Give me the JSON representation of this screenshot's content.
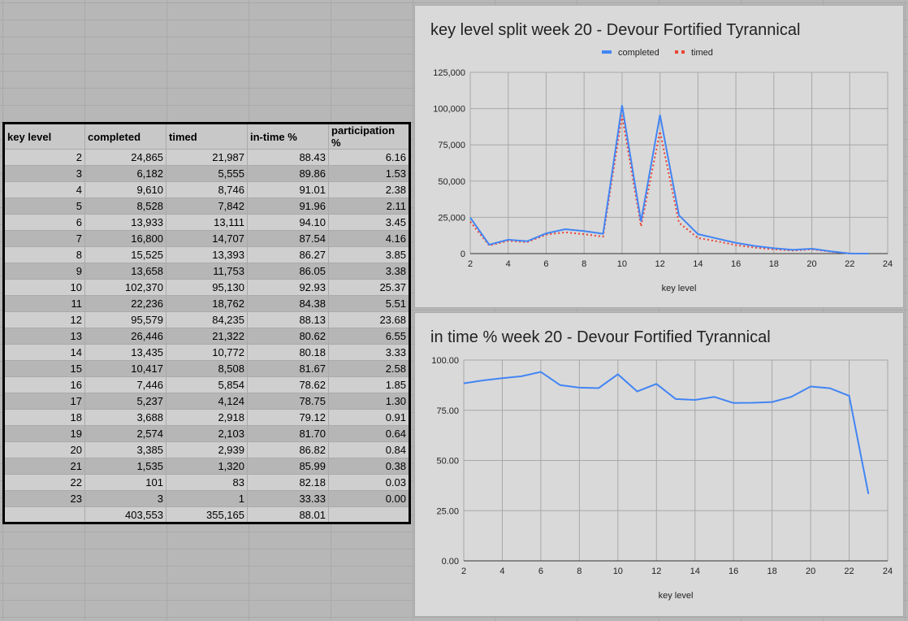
{
  "table": {
    "headers": [
      "key level",
      "completed",
      "timed",
      "in-time %",
      "participation %"
    ],
    "rows": [
      [
        "2",
        "24,865",
        "21,987",
        "88.43",
        "6.16"
      ],
      [
        "3",
        "6,182",
        "5,555",
        "89.86",
        "1.53"
      ],
      [
        "4",
        "9,610",
        "8,746",
        "91.01",
        "2.38"
      ],
      [
        "5",
        "8,528",
        "7,842",
        "91.96",
        "2.11"
      ],
      [
        "6",
        "13,933",
        "13,111",
        "94.10",
        "3.45"
      ],
      [
        "7",
        "16,800",
        "14,707",
        "87.54",
        "4.16"
      ],
      [
        "8",
        "15,525",
        "13,393",
        "86.27",
        "3.85"
      ],
      [
        "9",
        "13,658",
        "11,753",
        "86.05",
        "3.38"
      ],
      [
        "10",
        "102,370",
        "95,130",
        "92.93",
        "25.37"
      ],
      [
        "11",
        "22,236",
        "18,762",
        "84.38",
        "5.51"
      ],
      [
        "12",
        "95,579",
        "84,235",
        "88.13",
        "23.68"
      ],
      [
        "13",
        "26,446",
        "21,322",
        "80.62",
        "6.55"
      ],
      [
        "14",
        "13,435",
        "10,772",
        "80.18",
        "3.33"
      ],
      [
        "15",
        "10,417",
        "8,508",
        "81.67",
        "2.58"
      ],
      [
        "16",
        "7,446",
        "5,854",
        "78.62",
        "1.85"
      ],
      [
        "17",
        "5,237",
        "4,124",
        "78.75",
        "1.30"
      ],
      [
        "18",
        "3,688",
        "2,918",
        "79.12",
        "0.91"
      ],
      [
        "19",
        "2,574",
        "2,103",
        "81.70",
        "0.64"
      ],
      [
        "20",
        "3,385",
        "2,939",
        "86.82",
        "0.84"
      ],
      [
        "21",
        "1,535",
        "1,320",
        "85.99",
        "0.38"
      ],
      [
        "22",
        "101",
        "83",
        "82.18",
        "0.03"
      ],
      [
        "23",
        "3",
        "1",
        "33.33",
        "0.00"
      ],
      [
        "",
        "403,553",
        "355,165",
        "88.01",
        ""
      ]
    ]
  },
  "chart_data": [
    {
      "type": "line",
      "title": "key level split week 20 - Devour Fortified Tyrannical",
      "xlabel": "key level",
      "ylabel": "",
      "xlim": [
        2,
        24
      ],
      "ylim": [
        0,
        125000
      ],
      "xticks": [
        "2",
        "4",
        "6",
        "8",
        "10",
        "12",
        "14",
        "16",
        "18",
        "20",
        "22",
        "24"
      ],
      "yticks": [
        "0",
        "25,000",
        "50,000",
        "75,000",
        "100,000",
        "125,000"
      ],
      "grid": true,
      "legend": "top",
      "x": [
        2,
        3,
        4,
        5,
        6,
        7,
        8,
        9,
        10,
        11,
        12,
        13,
        14,
        15,
        16,
        17,
        18,
        19,
        20,
        21,
        22,
        23
      ],
      "series": [
        {
          "name": "completed",
          "color": "#4285f4",
          "style": "solid",
          "values": [
            24865,
            6182,
            9610,
            8528,
            13933,
            16800,
            15525,
            13658,
            102370,
            22236,
            95579,
            26446,
            13435,
            10417,
            7446,
            5237,
            3688,
            2574,
            3385,
            1535,
            101,
            3
          ]
        },
        {
          "name": "timed",
          "color": "#ea4335",
          "style": "dotted",
          "values": [
            21987,
            5555,
            8746,
            7842,
            13111,
            14707,
            13393,
            11753,
            95130,
            18762,
            84235,
            21322,
            10772,
            8508,
            5854,
            4124,
            2918,
            2103,
            2939,
            1320,
            83,
            1
          ]
        }
      ]
    },
    {
      "type": "line",
      "title": "in time % week 20 - Devour Fortified Tyrannical",
      "xlabel": "key level",
      "ylabel": "",
      "xlim": [
        2,
        24
      ],
      "ylim": [
        0,
        100
      ],
      "xticks": [
        "2",
        "4",
        "6",
        "8",
        "10",
        "12",
        "14",
        "16",
        "18",
        "20",
        "22",
        "24"
      ],
      "yticks": [
        "0.00",
        "25.00",
        "50.00",
        "75.00",
        "100.00"
      ],
      "grid": true,
      "x": [
        2,
        3,
        4,
        5,
        6,
        7,
        8,
        9,
        10,
        11,
        12,
        13,
        14,
        15,
        16,
        17,
        18,
        19,
        20,
        21,
        22,
        23
      ],
      "series": [
        {
          "color": "#4285f4",
          "style": "solid",
          "values": [
            88.43,
            89.86,
            91.01,
            91.96,
            94.1,
            87.54,
            86.27,
            86.05,
            92.93,
            84.38,
            88.13,
            80.62,
            80.18,
            81.67,
            78.62,
            78.75,
            79.12,
            81.7,
            86.82,
            85.99,
            82.18,
            33.33
          ]
        }
      ]
    }
  ]
}
